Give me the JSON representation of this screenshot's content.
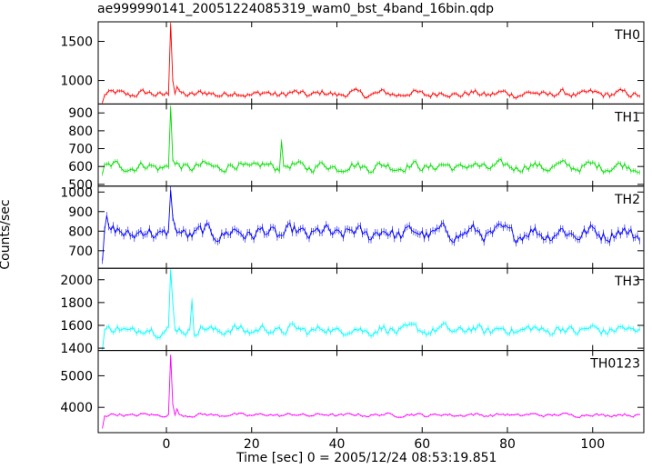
{
  "title": "ae999990141_20051224085319_wam0_bst_4band_16bin.qdp",
  "ylabel": "Counts/sec",
  "xlabel": "Time [sec] 0 = 2005/12/24 08:53:19.851",
  "chart_data": {
    "type": "line",
    "x_ticks": [
      0,
      20,
      40,
      60,
      80,
      100
    ],
    "xlim": [
      -16,
      112
    ],
    "panels": [
      {
        "name": "TH0",
        "color": "#ff0000",
        "ylim": [
          700,
          1750
        ],
        "y_ticks": [
          1000,
          1500
        ],
        "baseline": 830,
        "noise": 60,
        "features": [
          {
            "x": -15.0,
            "y": 720
          },
          {
            "x": 1.0,
            "y": 1720
          },
          {
            "x": 1.4,
            "y": 1000
          },
          {
            "x": 2.5,
            "y": 920
          }
        ]
      },
      {
        "name": "TH1",
        "color": "#00dd00",
        "ylim": [
          490,
          950
        ],
        "y_ticks": [
          500,
          600,
          700,
          800,
          900
        ],
        "baseline": 600,
        "noise": 35,
        "features": [
          {
            "x": -15.0,
            "y": 560
          },
          {
            "x": 1.0,
            "y": 930
          },
          {
            "x": 1.4,
            "y": 640
          },
          {
            "x": 27.0,
            "y": 740
          }
        ]
      },
      {
        "name": "TH2",
        "color": "#0000ff",
        "ylim": [
          610,
          1030
        ],
        "y_ticks": [
          700,
          800,
          900,
          1000
        ],
        "baseline": 790,
        "noise": 50,
        "features": [
          {
            "x": -15.0,
            "y": 650
          },
          {
            "x": -14.0,
            "y": 880
          },
          {
            "x": 1.0,
            "y": 1010
          },
          {
            "x": 1.4,
            "y": 870
          }
        ]
      },
      {
        "name": "TH3",
        "color": "#00ffff",
        "ylim": [
          1380,
          2100
        ],
        "y_ticks": [
          1400,
          1600,
          1800,
          2000
        ],
        "baseline": 1560,
        "noise": 60,
        "features": [
          {
            "x": -15.0,
            "y": 1390
          },
          {
            "x": 1.0,
            "y": 2080
          },
          {
            "x": 1.4,
            "y": 1800
          },
          {
            "x": 6.0,
            "y": 1820
          }
        ]
      },
      {
        "name": "TH0123",
        "color": "#ff00ff",
        "ylim": [
          3200,
          5800
        ],
        "y_ticks": [
          4000,
          5000
        ],
        "baseline": 3760,
        "noise": 70,
        "features": [
          {
            "x": -15.0,
            "y": 3350
          },
          {
            "x": 1.0,
            "y": 5650
          },
          {
            "x": 1.4,
            "y": 4100
          },
          {
            "x": 2.5,
            "y": 3950
          }
        ]
      }
    ]
  }
}
